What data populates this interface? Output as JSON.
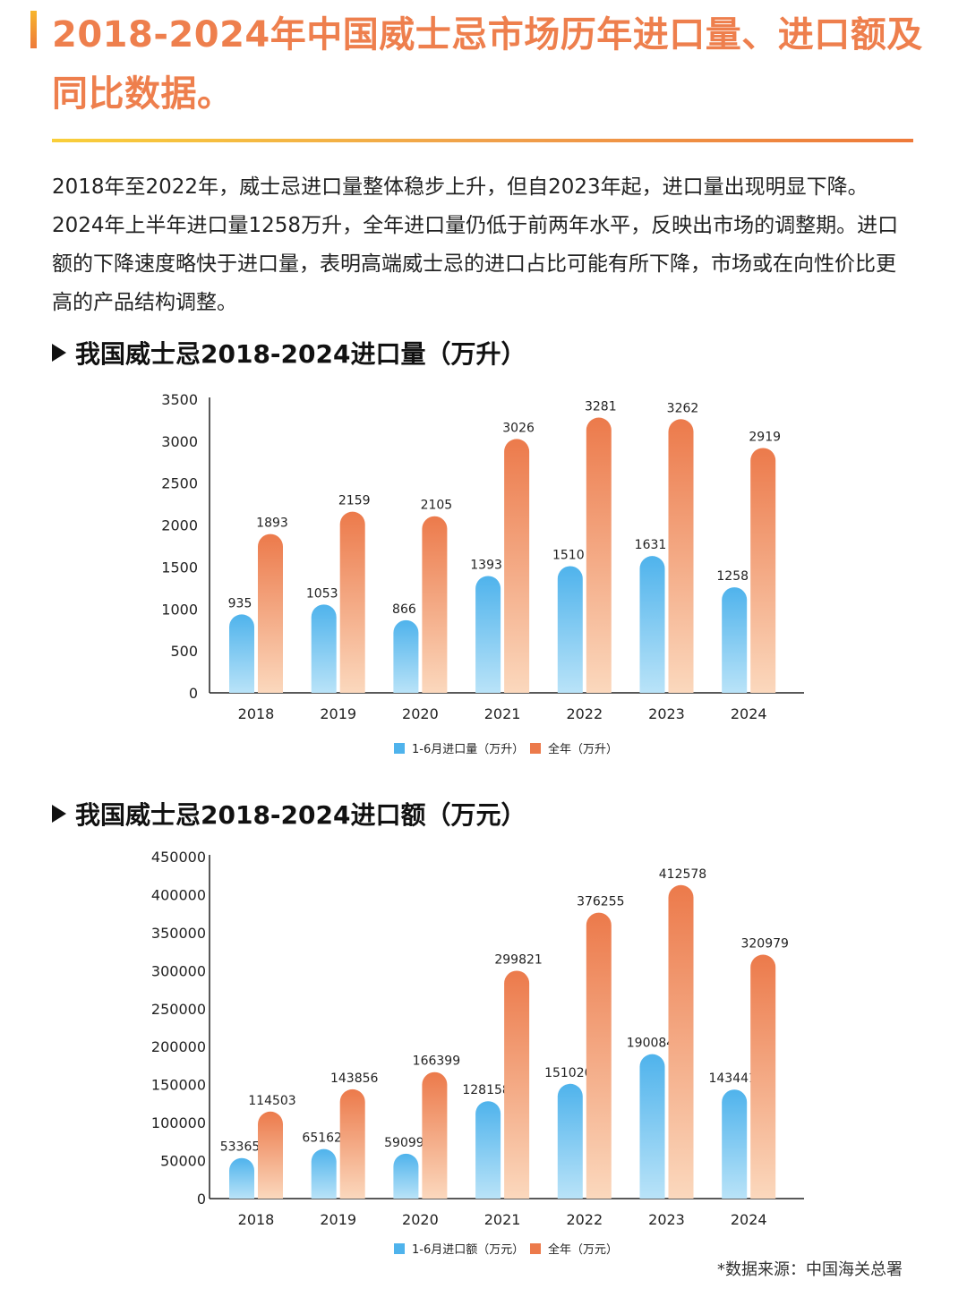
{
  "page": {
    "title": "2018-2024年中国威士忌市场历年进口量、进口额及同比数据。",
    "intro": "2018年至2022年，威士忌进口量整体稳步上升，但自2023年起，进口量出现明显下降。2024年上半年进口量1258万升，全年进口量仍低于前两年水平，反映出市场的调整期。进口额的下降速度略快于进口量，表明高端威士忌的进口占比可能有所下降，市场或在向性价比更高的产品结构调整。",
    "source": "*数据来源：中国海关总署"
  },
  "colors": {
    "accent": "#ee7f4d",
    "blue_top": "#4fb3ec",
    "blue_bottom": "#b9e3f8",
    "orange_top": "#ec7a4b",
    "orange_bottom": "#fbd8bd"
  },
  "chart_data": [
    {
      "type": "bar",
      "title": "我国威士忌2018-2024进口量（万升）",
      "categories": [
        "2018",
        "2019",
        "2020",
        "2021",
        "2022",
        "2023",
        "2024"
      ],
      "series": [
        {
          "name": "1-6月进口量（万升）",
          "values": [
            935,
            1053,
            866,
            1393,
            1510,
            1631,
            1258
          ],
          "color": "blue"
        },
        {
          "name": "全年（万升）",
          "values": [
            1893,
            2159,
            2105,
            3026,
            3281,
            3262,
            2919
          ],
          "color": "orange"
        }
      ],
      "yticks": [
        0,
        500,
        1000,
        1500,
        2000,
        2500,
        3000,
        3500
      ],
      "ylim": [
        0,
        3500
      ],
      "grid": false,
      "legend": "bottom-center"
    },
    {
      "type": "bar",
      "title": "我国威士忌2018-2024进口额（万元）",
      "categories": [
        "2018",
        "2019",
        "2020",
        "2021",
        "2022",
        "2023",
        "2024"
      ],
      "series": [
        {
          "name": "1-6月进口额（万元）",
          "values": [
            53365,
            65162,
            59099,
            128158,
            151020,
            190084,
            143441
          ],
          "color": "blue"
        },
        {
          "name": "全年（万元）",
          "values": [
            114503,
            143856,
            166399,
            299821,
            376255,
            412578,
            320979
          ],
          "color": "orange"
        }
      ],
      "yticks": [
        0,
        50000,
        100000,
        150000,
        200000,
        250000,
        300000,
        350000,
        400000,
        450000
      ],
      "ylim": [
        0,
        450000
      ],
      "grid": false,
      "legend": "bottom-center"
    }
  ]
}
